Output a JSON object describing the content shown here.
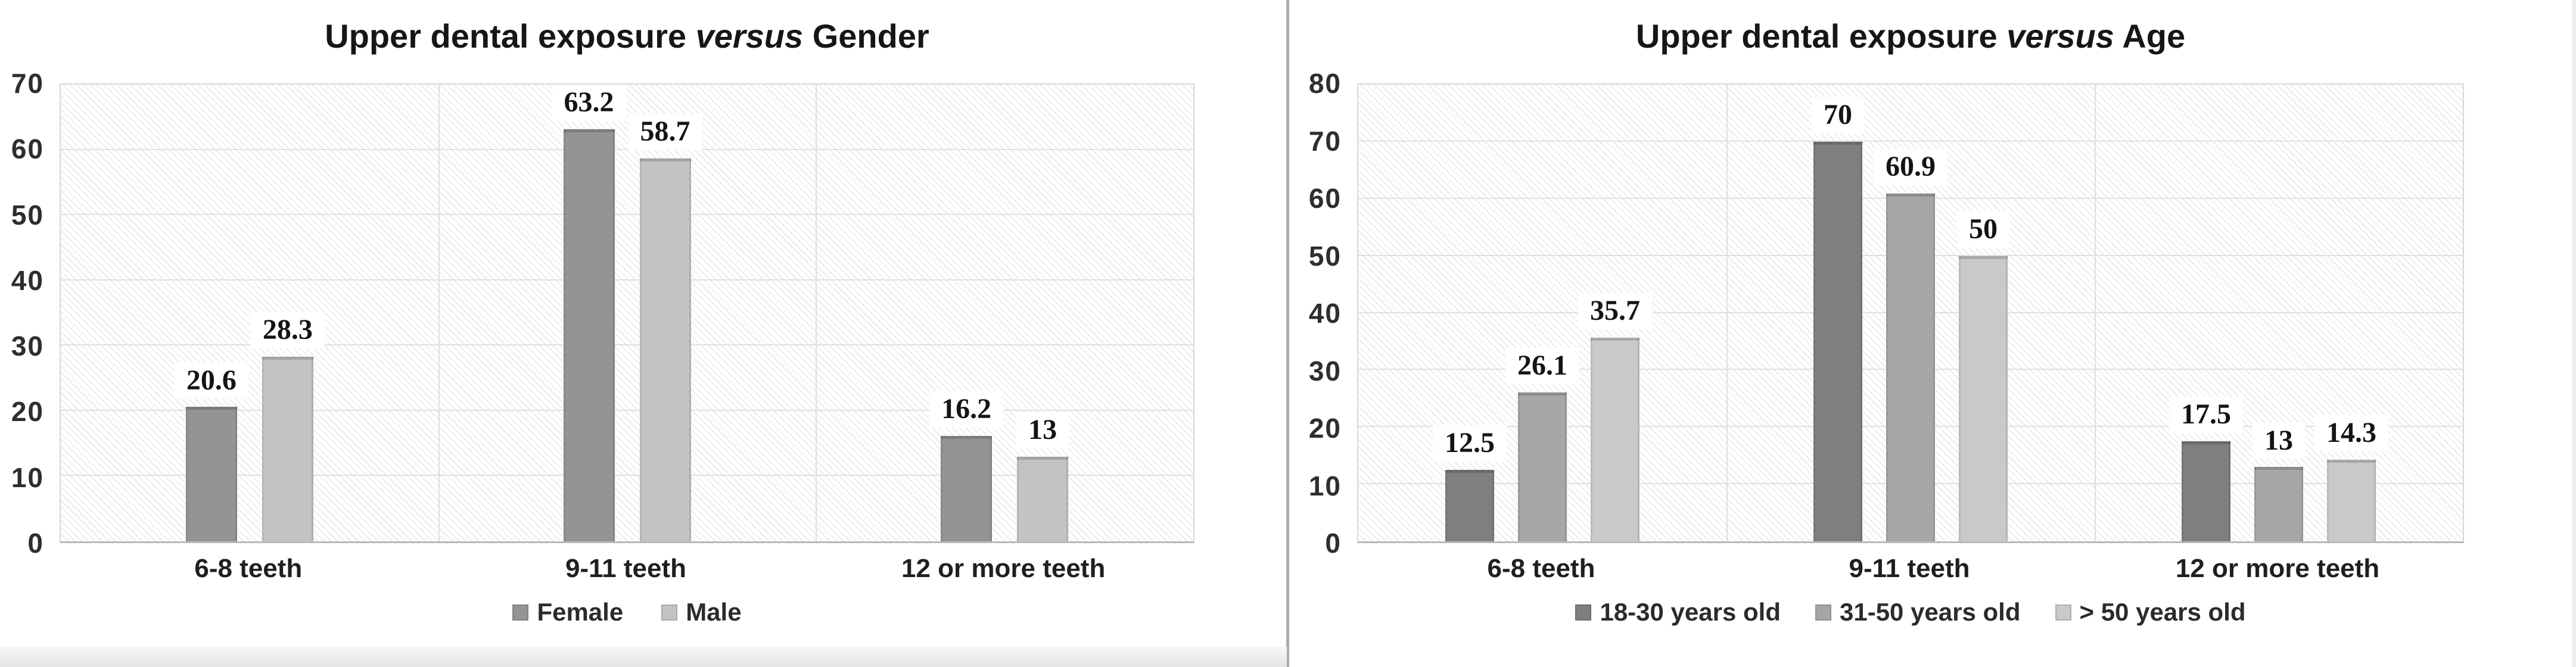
{
  "page": {
    "background": "#ffffff",
    "divider_color": "#ababab"
  },
  "chart_data": [
    {
      "type": "bar",
      "title": "Upper dental exposure versus Gender",
      "title_prefix": "Upper dental exposure ",
      "title_italic": "versus",
      "title_suffix": " Gender",
      "categories": [
        "6-8 teeth",
        "9-11 teeth",
        "12 or more teeth"
      ],
      "series": [
        {
          "name": "Female",
          "color": "#949494",
          "values": [
            20.6,
            63.2,
            16.2
          ],
          "labels": [
            "20.6",
            "63.2",
            "16.2"
          ]
        },
        {
          "name": "Male",
          "color": "#c3c3c3",
          "values": [
            28.3,
            58.7,
            13
          ],
          "labels": [
            "28.3",
            "58.7",
            "13"
          ]
        }
      ],
      "xlabel": "",
      "ylabel": "",
      "ylim": [
        0,
        70
      ],
      "yticks": [
        0,
        10,
        20,
        30,
        40,
        50,
        60,
        70
      ],
      "grid": true,
      "plot_background": "diagonal-hatch",
      "legend_position": "bottom"
    },
    {
      "type": "bar",
      "title": "Upper dental exposure versus Age",
      "title_prefix": "Upper dental exposure ",
      "title_italic": "versus",
      "title_suffix": " Age",
      "categories": [
        "6-8 teeth",
        "9-11 teeth",
        "12 or more teeth"
      ],
      "series": [
        {
          "name": "18-30 years old",
          "color": "#7f7f7f",
          "values": [
            12.5,
            70,
            17.5
          ],
          "labels": [
            "12.5",
            "70",
            "17.5"
          ]
        },
        {
          "name": "31-50 years old",
          "color": "#a6a6a6",
          "values": [
            26.1,
            60.9,
            13
          ],
          "labels": [
            "26.1",
            "60.9",
            "13"
          ]
        },
        {
          "name": "> 50 years old",
          "color": "#c9c9c9",
          "values": [
            35.7,
            50,
            14.3
          ],
          "labels": [
            "35.7",
            "50",
            "14.3"
          ]
        }
      ],
      "xlabel": "",
      "ylabel": "",
      "ylim": [
        0,
        80
      ],
      "yticks": [
        0,
        10,
        20,
        30,
        40,
        50,
        60,
        70,
        80
      ],
      "grid": true,
      "plot_background": "diagonal-hatch",
      "legend_position": "bottom"
    }
  ]
}
